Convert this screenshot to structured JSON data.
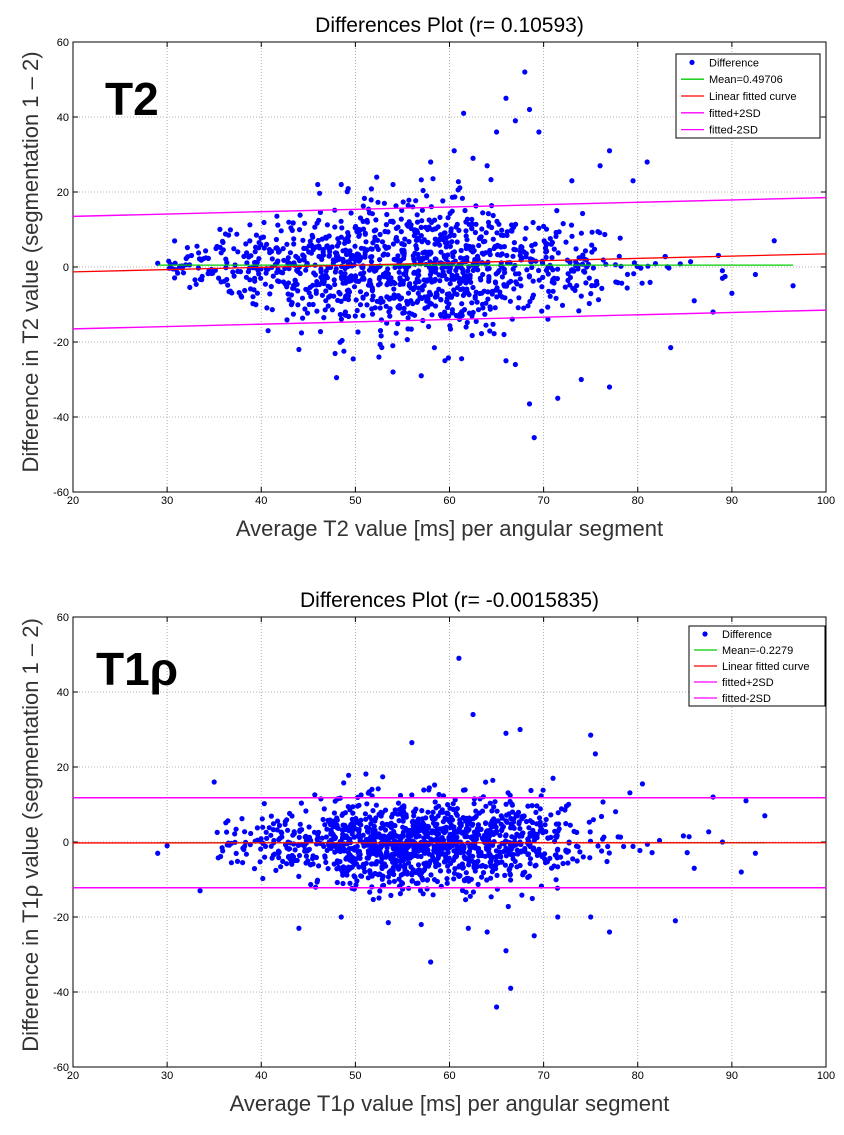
{
  "y_axis_label": "Difference in T2 value (segmentation 1 – 2)",
  "y_axis_label_2": "Difference in T1ρ value (segmentation 1 – 2)",
  "chart_data": [
    {
      "type": "scatter",
      "title": "Differences Plot (r= 0.10593)",
      "badge": "T2",
      "xlabel": "Average T2 value [ms] per angular segment",
      "ylabel": "Difference in T2 value (segmentation 1 – 2)",
      "xlim": [
        20,
        100
      ],
      "ylim": [
        -60,
        60
      ],
      "xticks": [
        20,
        30,
        40,
        50,
        60,
        70,
        80,
        90,
        100
      ],
      "yticks": [
        -60,
        -40,
        -20,
        0,
        20,
        40,
        60
      ],
      "grid": true,
      "legend": {
        "placement": "top-right",
        "entries": [
          "Difference",
          "Mean=0.49706",
          "Linear fitted curve",
          "fitted+2SD",
          "fitted-2SD"
        ]
      },
      "colors": {
        "points": "#0000ff",
        "mean": "#00cc00",
        "fit": "#ff0000",
        "sd": "#ff00ff"
      },
      "mean": 0.49706,
      "fit_line": {
        "x": [
          20,
          100
        ],
        "y": [
          -1.3,
          3.5
        ]
      },
      "sd_plus": {
        "x": [
          20,
          100
        ],
        "y": [
          13.5,
          18.5
        ]
      },
      "sd_minus": {
        "x": [
          20,
          100
        ],
        "y": [
          -16.5,
          -11.5
        ]
      },
      "mean_line_x": [
        29,
        96.5
      ],
      "outliers": [
        {
          "x": 68,
          "y": 52
        },
        {
          "x": 61.5,
          "y": 41
        },
        {
          "x": 66,
          "y": 45
        },
        {
          "x": 68.5,
          "y": 42
        },
        {
          "x": 67,
          "y": 39
        },
        {
          "x": 69.5,
          "y": 36
        },
        {
          "x": 65,
          "y": 36
        },
        {
          "x": 60.5,
          "y": 31
        },
        {
          "x": 62.5,
          "y": 29
        },
        {
          "x": 77,
          "y": 31
        },
        {
          "x": 76,
          "y": 27
        },
        {
          "x": 81,
          "y": 28
        },
        {
          "x": 58,
          "y": 28
        },
        {
          "x": 64,
          "y": 27
        },
        {
          "x": 46,
          "y": 22
        },
        {
          "x": 48.5,
          "y": 22
        },
        {
          "x": 54,
          "y": 22
        },
        {
          "x": 79.5,
          "y": 23
        },
        {
          "x": 73,
          "y": 23
        },
        {
          "x": 94.5,
          "y": 7
        },
        {
          "x": 96.5,
          "y": -5
        },
        {
          "x": 29,
          "y": 1
        },
        {
          "x": 69,
          "y": -45.5
        },
        {
          "x": 68.5,
          "y": -36.5
        },
        {
          "x": 71.5,
          "y": -35
        },
        {
          "x": 77,
          "y": -32
        },
        {
          "x": 67,
          "y": -26
        },
        {
          "x": 66,
          "y": -25
        },
        {
          "x": 48,
          "y": -29.5
        },
        {
          "x": 57,
          "y": -29
        },
        {
          "x": 54,
          "y": -28
        },
        {
          "x": 44,
          "y": -22
        },
        {
          "x": 52.5,
          "y": -24
        },
        {
          "x": 83.5,
          "y": -21.5
        },
        {
          "x": 74,
          "y": -30
        },
        {
          "x": 88,
          "y": -12
        },
        {
          "x": 90,
          "y": -7
        },
        {
          "x": 86,
          "y": -9
        },
        {
          "x": 89,
          "y": -3
        },
        {
          "x": 92.5,
          "y": -2
        }
      ],
      "cloud": {
        "count": 1250,
        "x_center": 55,
        "x_spread": 11,
        "x_min": 30,
        "x_max": 92,
        "y_sd_low": 2,
        "y_sd_high": 9,
        "y_center": 0.5,
        "seed": 7
      }
    },
    {
      "type": "scatter",
      "title": "Differences Plot (r= -0.0015835)",
      "badge": "T1ρ",
      "xlabel": "Average T1ρ value [ms] per angular segment",
      "ylabel": "Difference in T1ρ value (segmentation 1 – 2)",
      "xlim": [
        20,
        100
      ],
      "ylim": [
        -60,
        60
      ],
      "xticks": [
        20,
        30,
        40,
        50,
        60,
        70,
        80,
        90,
        100
      ],
      "yticks": [
        -60,
        -40,
        -20,
        0,
        20,
        40,
        60
      ],
      "grid": true,
      "legend": {
        "placement": "top-right",
        "entries": [
          "Difference",
          "Mean=-0.2279",
          "Linear fitted curve",
          "fitted+2SD",
          "fitted-2SD"
        ]
      },
      "colors": {
        "points": "#0000ff",
        "mean": "#00cc00",
        "fit": "#ff0000",
        "sd": "#ff00ff"
      },
      "mean": -0.2279,
      "fit_line": {
        "x": [
          20,
          100
        ],
        "y": [
          -0.25,
          -0.2
        ]
      },
      "sd_plus": {
        "x": [
          20,
          100
        ],
        "y": [
          11.8,
          11.8
        ]
      },
      "sd_minus": {
        "x": [
          20,
          100
        ],
        "y": [
          -12.2,
          -12.2
        ]
      },
      "mean_line_x": [
        29,
        93.5
      ],
      "outliers": [
        {
          "x": 61,
          "y": 49
        },
        {
          "x": 62.5,
          "y": 34
        },
        {
          "x": 67.5,
          "y": 30
        },
        {
          "x": 66,
          "y": 29
        },
        {
          "x": 75,
          "y": 28.5
        },
        {
          "x": 56,
          "y": 26.5
        },
        {
          "x": 75.5,
          "y": 23.5
        },
        {
          "x": 71,
          "y": 17
        },
        {
          "x": 35,
          "y": 16
        },
        {
          "x": 80.5,
          "y": 15.5
        },
        {
          "x": 88,
          "y": 12
        },
        {
          "x": 91.5,
          "y": 11
        },
        {
          "x": 93.5,
          "y": 7
        },
        {
          "x": 29,
          "y": -3
        },
        {
          "x": 30,
          "y": -1
        },
        {
          "x": 33.5,
          "y": -13
        },
        {
          "x": 44,
          "y": -23
        },
        {
          "x": 58,
          "y": -32
        },
        {
          "x": 65,
          "y": -44
        },
        {
          "x": 66.5,
          "y": -39
        },
        {
          "x": 66,
          "y": -29
        },
        {
          "x": 69,
          "y": -25
        },
        {
          "x": 71.5,
          "y": -20
        },
        {
          "x": 75,
          "y": -20
        },
        {
          "x": 77,
          "y": -24
        },
        {
          "x": 84,
          "y": -21
        },
        {
          "x": 86,
          "y": -7
        },
        {
          "x": 91,
          "y": -8
        },
        {
          "x": 92.5,
          "y": -3
        },
        {
          "x": 89,
          "y": 0
        },
        {
          "x": 48.5,
          "y": -20
        },
        {
          "x": 53.5,
          "y": -21.5
        },
        {
          "x": 57,
          "y": -22
        },
        {
          "x": 62,
          "y": -23
        },
        {
          "x": 64,
          "y": -24
        }
      ],
      "cloud": {
        "count": 1350,
        "x_center": 57,
        "x_spread": 9,
        "x_min": 35,
        "x_max": 88,
        "y_sd_low": 3.2,
        "y_sd_high": 6,
        "y_center": -0.2,
        "seed": 11
      }
    }
  ]
}
